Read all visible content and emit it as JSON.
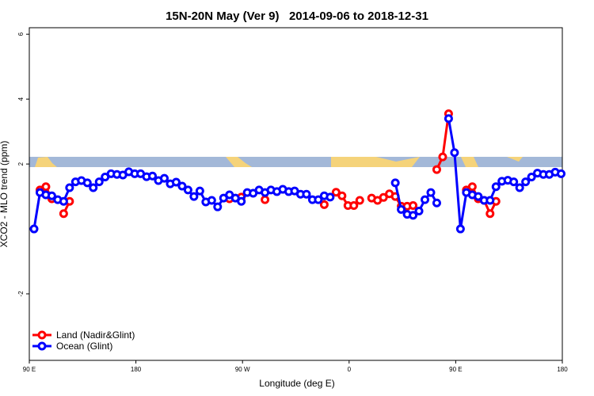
{
  "chart_data": {
    "type": "line",
    "title": "15N-20N May (Ver 9)   2014-09-06 to 2018-12-31",
    "xlabel": "Longitude (deg E)",
    "ylabel": "XCO2 - MLO trend (ppm)",
    "x": [
      94,
      99,
      104,
      109,
      114,
      119,
      124,
      129,
      134,
      139,
      144,
      149,
      154,
      159,
      164,
      169,
      174,
      179,
      184,
      189,
      194,
      199,
      204,
      209,
      214,
      219,
      224,
      229,
      234,
      239,
      244,
      249,
      254,
      259,
      264,
      269,
      274,
      279,
      284,
      289,
      294,
      299,
      304,
      309,
      314,
      319,
      324,
      329,
      334,
      339,
      344,
      349,
      354,
      359,
      364,
      369,
      374,
      379,
      384,
      389,
      394,
      399,
      404,
      409,
      414,
      419,
      424,
      429,
      434,
      439,
      444,
      449,
      454,
      459,
      464,
      469,
      474,
      479,
      484,
      489,
      494,
      499,
      504,
      509,
      514,
      519,
      524,
      529,
      534,
      539
    ],
    "series": [
      {
        "name": "Land (Nadir&Glint)",
        "color": "#ff0000",
        "values": [
          null,
          1.2,
          1.3,
          0.93,
          null,
          0.47,
          0.85,
          null,
          null,
          null,
          null,
          null,
          null,
          null,
          null,
          null,
          null,
          null,
          null,
          null,
          null,
          null,
          null,
          null,
          null,
          null,
          null,
          null,
          null,
          null,
          null,
          null,
          null,
          0.93,
          null,
          0.98,
          null,
          null,
          null,
          0.9,
          null,
          null,
          null,
          null,
          null,
          null,
          null,
          null,
          null,
          0.75,
          null,
          1.13,
          1.02,
          0.72,
          0.72,
          0.88,
          null,
          0.95,
          0.88,
          0.97,
          1.08,
          1.0,
          0.7,
          0.7,
          0.72,
          null,
          null,
          null,
          1.83,
          2.22,
          3.55,
          null,
          null,
          1.2,
          1.3,
          0.93,
          0.88,
          0.47,
          0.85,
          null,
          null,
          null,
          null,
          null,
          null,
          null,
          null,
          null,
          null,
          null
        ]
      },
      {
        "name": "Ocean (Glint)",
        "color": "#0000ff",
        "values": [
          0.0,
          1.12,
          1.05,
          1.02,
          0.9,
          0.85,
          1.27,
          1.45,
          1.49,
          1.42,
          1.27,
          1.45,
          1.6,
          1.7,
          1.68,
          1.66,
          1.76,
          1.7,
          1.7,
          1.61,
          1.63,
          1.49,
          1.56,
          1.39,
          1.44,
          1.32,
          1.2,
          1.0,
          1.17,
          0.83,
          0.88,
          0.68,
          0.95,
          1.05,
          0.95,
          0.85,
          1.12,
          1.1,
          1.2,
          1.12,
          1.2,
          1.15,
          1.22,
          1.15,
          1.17,
          1.07,
          1.07,
          0.9,
          0.9,
          1.02,
          0.98,
          null,
          null,
          null,
          null,
          null,
          null,
          null,
          null,
          null,
          null,
          1.42,
          0.6,
          0.45,
          0.42,
          0.55,
          0.9,
          1.12,
          0.8,
          null,
          3.4,
          2.35,
          0.0,
          1.12,
          1.05,
          1.0,
          0.88,
          0.88,
          1.3,
          1.47,
          1.5,
          1.45,
          1.27,
          1.45,
          1.6,
          1.72,
          1.68,
          1.68,
          1.75,
          1.7
        ]
      }
    ],
    "xlim": [
      90,
      540
    ],
    "xticks": [
      {
        "value": 90,
        "label": "90 E"
      },
      {
        "value": 180,
        "label": "180"
      },
      {
        "value": 270,
        "label": "90 W"
      },
      {
        "value": 360,
        "label": "0"
      },
      {
        "value": 450,
        "label": "90 E"
      },
      {
        "value": 540,
        "label": "180"
      }
    ],
    "ylim": [
      -4.05,
      6.2
    ],
    "yticks": [
      -2,
      2,
      4,
      6
    ],
    "legend": "bottom-left"
  }
}
